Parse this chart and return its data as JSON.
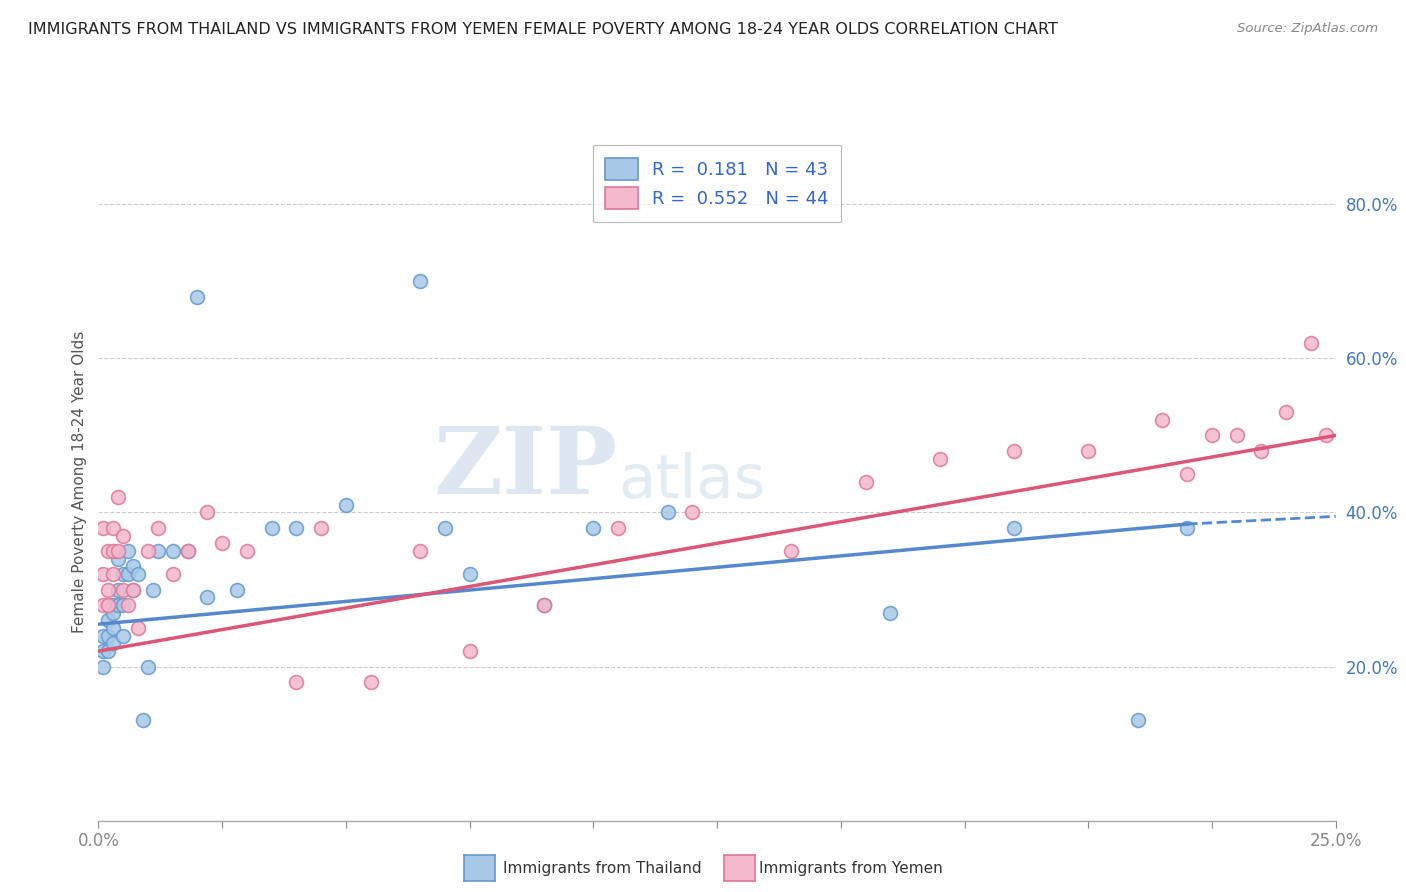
{
  "title": "IMMIGRANTS FROM THAILAND VS IMMIGRANTS FROM YEMEN FEMALE POVERTY AMONG 18-24 YEAR OLDS CORRELATION CHART",
  "source": "Source: ZipAtlas.com",
  "ylabel": "Female Poverty Among 18-24 Year Olds",
  "xlim": [
    0.0,
    0.25
  ],
  "ylim": [
    0.0,
    0.88
  ],
  "x_ticks": [
    0.0,
    0.025,
    0.05,
    0.075,
    0.1,
    0.125,
    0.15,
    0.175,
    0.2,
    0.225,
    0.25
  ],
  "y_ticks": [
    0.2,
    0.4,
    0.6,
    0.8
  ],
  "thailand_color": "#a8c8e8",
  "thailand_edge": "#6699cc",
  "yemen_color": "#f4b8cc",
  "yemen_edge": "#dd7799",
  "trend_thailand": "#5588cc",
  "trend_yemen": "#dd5577",
  "legend_R_thailand": "0.181",
  "legend_N_thailand": "43",
  "legend_R_yemen": "0.552",
  "legend_N_yemen": "44",
  "legend_label_thailand": "Immigrants from Thailand",
  "legend_label_yemen": "Immigrants from Yemen",
  "watermark_zip": "ZIP",
  "watermark_atlas": "atlas",
  "thailand_x": [
    0.001,
    0.001,
    0.001,
    0.002,
    0.002,
    0.002,
    0.003,
    0.003,
    0.003,
    0.003,
    0.004,
    0.004,
    0.004,
    0.005,
    0.005,
    0.005,
    0.006,
    0.006,
    0.007,
    0.007,
    0.008,
    0.009,
    0.01,
    0.011,
    0.012,
    0.015,
    0.018,
    0.02,
    0.022,
    0.028,
    0.035,
    0.04,
    0.05,
    0.065,
    0.07,
    0.075,
    0.09,
    0.1,
    0.115,
    0.16,
    0.185,
    0.21,
    0.22
  ],
  "thailand_y": [
    0.24,
    0.22,
    0.2,
    0.26,
    0.24,
    0.22,
    0.28,
    0.27,
    0.25,
    0.23,
    0.28,
    0.3,
    0.34,
    0.28,
    0.32,
    0.24,
    0.32,
    0.35,
    0.3,
    0.33,
    0.32,
    0.13,
    0.2,
    0.3,
    0.35,
    0.35,
    0.35,
    0.68,
    0.29,
    0.3,
    0.38,
    0.38,
    0.41,
    0.7,
    0.38,
    0.32,
    0.28,
    0.38,
    0.4,
    0.27,
    0.38,
    0.13,
    0.38
  ],
  "yemen_x": [
    0.001,
    0.001,
    0.001,
    0.002,
    0.002,
    0.002,
    0.003,
    0.003,
    0.003,
    0.004,
    0.004,
    0.005,
    0.005,
    0.006,
    0.007,
    0.008,
    0.01,
    0.012,
    0.015,
    0.018,
    0.022,
    0.025,
    0.03,
    0.04,
    0.045,
    0.055,
    0.065,
    0.075,
    0.09,
    0.105,
    0.12,
    0.14,
    0.155,
    0.17,
    0.185,
    0.2,
    0.215,
    0.22,
    0.225,
    0.23,
    0.235,
    0.24,
    0.245,
    0.248
  ],
  "yemen_y": [
    0.28,
    0.32,
    0.38,
    0.3,
    0.35,
    0.28,
    0.32,
    0.38,
    0.35,
    0.35,
    0.42,
    0.3,
    0.37,
    0.28,
    0.3,
    0.25,
    0.35,
    0.38,
    0.32,
    0.35,
    0.4,
    0.36,
    0.35,
    0.18,
    0.38,
    0.18,
    0.35,
    0.22,
    0.28,
    0.38,
    0.4,
    0.35,
    0.44,
    0.47,
    0.48,
    0.48,
    0.52,
    0.45,
    0.5,
    0.5,
    0.48,
    0.53,
    0.62,
    0.5
  ],
  "trend_th_x0": 0.0,
  "trend_th_y0": 0.255,
  "trend_th_x1": 0.22,
  "trend_th_y1": 0.385,
  "trend_th_dash_x0": 0.22,
  "trend_th_dash_y0": 0.385,
  "trend_th_dash_x1": 0.25,
  "trend_th_dash_y1": 0.395,
  "trend_ye_x0": 0.0,
  "trend_ye_y0": 0.22,
  "trend_ye_x1": 0.25,
  "trend_ye_y1": 0.5
}
